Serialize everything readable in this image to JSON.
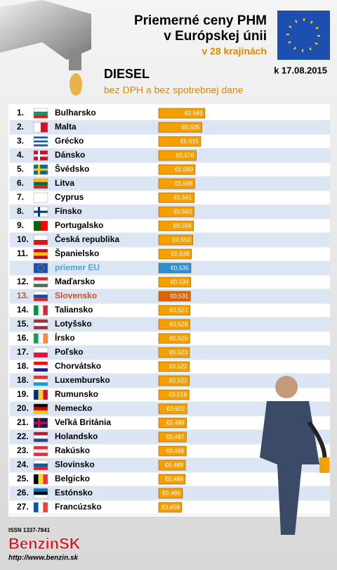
{
  "header": {
    "title_line1": "Priemerné ceny PHM",
    "title_line2": "v Európskej únii",
    "subtitle": "v 28 krajinách",
    "date": "k 17.08.2015",
    "fuel": "DIESEL",
    "note": "bez DPH a bez spotrebnej dane"
  },
  "chart_data": {
    "type": "bar",
    "orientation": "horizontal",
    "categories": [
      "Bulharsko",
      "Malta",
      "Grécko",
      "Dánsko",
      "Švédsko",
      "Litva",
      "Cyprus",
      "Fínsko",
      "Portugalsko",
      "Česká republika",
      "Španielsko",
      "priemer EU",
      "Maďarsko",
      "Slovensko",
      "Taliansko",
      "Lotyšsko",
      "Írsko",
      "Poľsko",
      "Chorvátsko",
      "Luxembursko",
      "Rumunsko",
      "Nemecko",
      "Veľká Británia",
      "Holandsko",
      "Rakúsko",
      "Slovinsko",
      "Belgicko",
      "Estónsko",
      "Francúzsko"
    ],
    "ranks": [
      "1.",
      "2.",
      "3.",
      "4.",
      "5.",
      "6.",
      "7.",
      "8.",
      "9.",
      "10.",
      "11.",
      null,
      "12.",
      "13.",
      "14.",
      "15.",
      "16.",
      "17.",
      "18.",
      "18.",
      "19.",
      "20.",
      "21.",
      "22.",
      "23.",
      "24.",
      "25.",
      "26.",
      "27."
    ],
    "values": [
      0.649,
      0.625,
      0.615,
      0.578,
      0.569,
      0.566,
      0.561,
      0.56,
      0.556,
      0.55,
      0.538,
      0.535,
      0.534,
      0.531,
      0.527,
      0.526,
      0.525,
      0.523,
      0.522,
      0.522,
      0.519,
      0.502,
      0.499,
      0.497,
      0.496,
      0.489,
      0.488,
      0.466,
      0.459
    ],
    "value_labels": [
      "€0,649",
      "€0,625",
      "€0,615",
      "€0,578",
      "€0,569",
      "€0,566",
      "€0,561",
      "€0,560",
      "€0,556",
      "€0,550",
      "€0,538",
      "€0,535",
      "€0,534",
      "€0,531",
      "€0,527",
      "€0,526",
      "€0,525",
      "€0,523",
      "€0,522",
      "€0,522",
      "€0,519",
      "€0,502",
      "€0,499",
      "€0,497",
      "€0,496",
      "€0,489",
      "€0,488",
      "€0,466",
      "€0,459"
    ],
    "colors": [
      "#f5a000",
      "#f5a000",
      "#f5a000",
      "#f5a000",
      "#f5a000",
      "#f5a000",
      "#f5a000",
      "#f5a000",
      "#f5a000",
      "#f5a000",
      "#f5a000",
      "#2a8fd6",
      "#f5a000",
      "#e0620a",
      "#f5a000",
      "#f5a000",
      "#f5a000",
      "#f5a000",
      "#f5a000",
      "#f5a000",
      "#f5a000",
      "#f5a000",
      "#f5a000",
      "#f5a000",
      "#f5a000",
      "#f5a000",
      "#f5a000",
      "#f5a000",
      "#f5a000"
    ],
    "label_colors": [
      "#000",
      "#000",
      "#000",
      "#000",
      "#000",
      "#000",
      "#000",
      "#000",
      "#000",
      "#000",
      "#000",
      "#4aa8e8",
      "#000",
      "#d2501e",
      "#000",
      "#000",
      "#000",
      "#000",
      "#000",
      "#000",
      "#000",
      "#000",
      "#000",
      "#000",
      "#000",
      "#000",
      "#000",
      "#000",
      "#000"
    ],
    "xlim": [
      0.27,
      0.65
    ]
  },
  "footer": {
    "issn": "ISSN 1337-7841",
    "brand": "BenzinSK",
    "url": "http://www.benzin.sk"
  }
}
